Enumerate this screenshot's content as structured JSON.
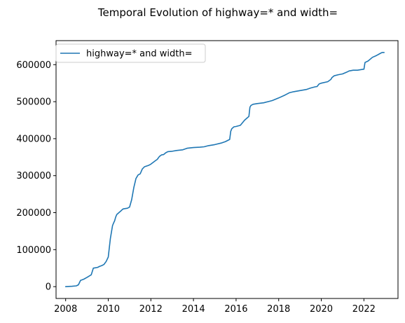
{
  "chart_data": {
    "type": "line",
    "title": "Temporal Evolution of highway=* and width=",
    "xlabel": "",
    "ylabel": "",
    "xlim": [
      2007.55,
      2023.6
    ],
    "ylim": [
      -32000,
      665000
    ],
    "x_ticks": [
      2008,
      2010,
      2012,
      2014,
      2016,
      2018,
      2020,
      2022
    ],
    "x_tick_labels": [
      "2008",
      "2010",
      "2012",
      "2014",
      "2016",
      "2018",
      "2020",
      "2022"
    ],
    "y_ticks": [
      0,
      100000,
      200000,
      300000,
      400000,
      500000,
      600000
    ],
    "y_tick_labels": [
      "0",
      "100000",
      "200000",
      "300000",
      "400000",
      "500000",
      "600000"
    ],
    "grid": false,
    "legend": {
      "position": "top-left",
      "entries": [
        "highway=* and width="
      ]
    },
    "series": [
      {
        "name": "highway=* and width=",
        "color": "#1f77b4",
        "x": [
          2008.0,
          2008.3,
          2008.5,
          2008.6,
          2008.7,
          2008.75,
          2008.85,
          2009.0,
          2009.2,
          2009.3,
          2009.4,
          2009.5,
          2009.6,
          2009.7,
          2009.8,
          2009.9,
          2010.0,
          2010.1,
          2010.2,
          2010.25,
          2010.3,
          2010.35,
          2010.4,
          2010.5,
          2010.6,
          2010.65,
          2010.7,
          2010.8,
          2010.9,
          2011.0,
          2011.1,
          2011.2,
          2011.25,
          2011.3,
          2011.35,
          2011.4,
          2011.5,
          2011.6,
          2011.7,
          2011.8,
          2011.85,
          2011.9,
          2012.0,
          2012.2,
          2012.3,
          2012.4,
          2012.5,
          2012.6,
          2012.7,
          2012.8,
          2013.0,
          2013.2,
          2013.5,
          2013.7,
          2014.0,
          2014.3,
          2014.5,
          2014.7,
          2015.0,
          2015.3,
          2015.5,
          2015.7,
          2015.75,
          2015.8,
          2015.9,
          2016.0,
          2016.2,
          2016.4,
          2016.5,
          2016.6,
          2016.65,
          2016.7,
          2016.8,
          2017.0,
          2017.3,
          2017.5,
          2017.7,
          2018.0,
          2018.3,
          2018.5,
          2018.7,
          2019.0,
          2019.3,
          2019.5,
          2019.7,
          2019.8,
          2019.9,
          2020.0,
          2020.3,
          2020.45,
          2020.5,
          2020.6,
          2020.8,
          2021.0,
          2021.2,
          2021.3,
          2021.5,
          2021.7,
          2021.9,
          2022.0,
          2022.05,
          2022.2,
          2022.4,
          2022.6,
          2022.75,
          2022.85,
          2022.95
        ],
        "y": [
          0,
          1000,
          2000,
          5000,
          17000,
          18000,
          20000,
          25000,
          32000,
          50000,
          51000,
          52000,
          55000,
          57000,
          60000,
          68000,
          80000,
          130000,
          165000,
          172000,
          178000,
          188000,
          195000,
          200000,
          205000,
          208000,
          210000,
          211000,
          212000,
          215000,
          235000,
          268000,
          280000,
          292000,
          297000,
          302000,
          305000,
          318000,
          324000,
          326000,
          327000,
          328000,
          331000,
          340000,
          344000,
          352000,
          356000,
          357000,
          362000,
          365000,
          366000,
          368000,
          370000,
          374000,
          376000,
          377000,
          378000,
          381000,
          384000,
          388000,
          392000,
          398000,
          420000,
          427000,
          432000,
          433000,
          436000,
          450000,
          455000,
          460000,
          485000,
          490000,
          493000,
          495000,
          497000,
          500000,
          503000,
          510000,
          518000,
          524000,
          527000,
          530000,
          533000,
          537000,
          540000,
          541000,
          548000,
          550000,
          554000,
          560000,
          565000,
          570000,
          573000,
          575000,
          580000,
          583000,
          585000,
          585000,
          587000,
          588000,
          606000,
          610000,
          620000,
          625000,
          630000,
          633000,
          633000
        ]
      }
    ]
  }
}
